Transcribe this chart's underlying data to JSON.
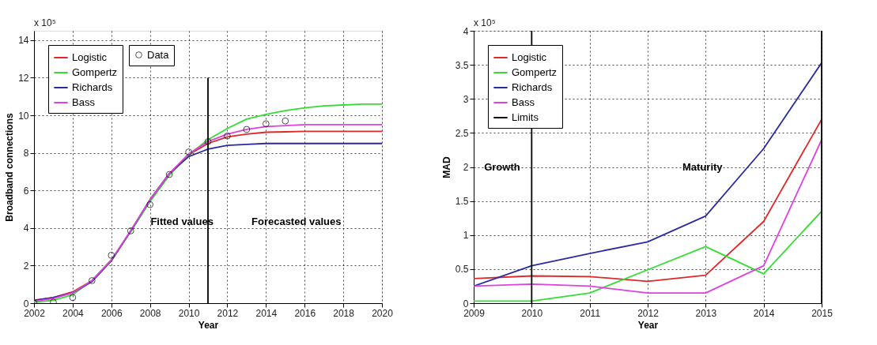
{
  "chart_data": [
    {
      "type": "line",
      "xlabel": "Year",
      "ylabel": "Broadband connections",
      "x": [
        2002,
        2003,
        2004,
        2005,
        2006,
        2007,
        2008,
        2009,
        2010,
        2011,
        2012,
        2013,
        2014,
        2015,
        2016,
        2017,
        2018,
        2019,
        2020
      ],
      "xlim": [
        2002,
        2020
      ],
      "xticks": [
        2002,
        2004,
        2006,
        2008,
        2010,
        2012,
        2014,
        2016,
        2018,
        2020
      ],
      "ylim": [
        0,
        14.5
      ],
      "yticks": [
        0,
        2,
        4,
        6,
        8,
        10,
        12,
        14
      ],
      "grid": true,
      "legend": "top left",
      "marker": "none",
      "series": [
        {
          "name": "Logistic",
          "color": "#e02828",
          "values": [
            0.15,
            0.3,
            0.6,
            1.2,
            2.3,
            3.8,
            5.5,
            6.9,
            7.9,
            8.5,
            8.85,
            9.0,
            9.1,
            9.12,
            9.15,
            9.15,
            9.15,
            9.15,
            9.15
          ]
        },
        {
          "name": "Gompertz",
          "color": "#33dd33",
          "values": [
            0.05,
            0.15,
            0.45,
            1.2,
            2.3,
            3.8,
            5.4,
            6.8,
            7.9,
            8.7,
            9.3,
            9.8,
            10.05,
            10.25,
            10.4,
            10.5,
            10.55,
            10.6,
            10.6
          ]
        },
        {
          "name": "Richards",
          "color": "#2b2ba0",
          "values": [
            0.15,
            0.3,
            0.55,
            1.15,
            2.25,
            3.85,
            5.5,
            6.9,
            7.8,
            8.2,
            8.4,
            8.45,
            8.5,
            8.5,
            8.5,
            8.5,
            8.5,
            8.5,
            8.5
          ]
        },
        {
          "name": "Bass",
          "color": "#e040e0",
          "values": [
            0.1,
            0.25,
            0.55,
            1.2,
            2.3,
            3.85,
            5.5,
            6.9,
            7.95,
            8.6,
            9.0,
            9.25,
            9.4,
            9.45,
            9.5,
            9.5,
            9.5,
            9.5,
            9.5
          ]
        },
        {
          "name": "Data",
          "type": "scatter",
          "marker": "circle",
          "color": "#000000",
          "x": [
            2002,
            2003,
            2004,
            2005,
            2006,
            2007,
            2008,
            2009,
            2010,
            2011,
            2012,
            2013,
            2014,
            2015
          ],
          "values": [
            0,
            0.05,
            0.3,
            1.2,
            2.55,
            3.85,
            5.25,
            6.85,
            8.05,
            8.6,
            8.9,
            9.25,
            9.55,
            9.7
          ]
        },
        {
          "type": "line",
          "color": "#000000",
          "x": [
            2011,
            2011
          ],
          "values": [
            0,
            12
          ]
        }
      ],
      "annotations": [
        "x 10⁵",
        "Fitted values",
        "Forecasted values"
      ]
    },
    {
      "type": "line",
      "xlabel": "Year",
      "ylabel": "MAD",
      "x": [
        2009,
        2010,
        2011,
        2012,
        2013,
        2014,
        2015
      ],
      "xlim": [
        2009,
        2015
      ],
      "xticks": [
        2009,
        2010,
        2011,
        2012,
        2013,
        2014,
        2015
      ],
      "ylim": [
        0,
        4
      ],
      "yticks": [
        0,
        0.5,
        1,
        1.5,
        2,
        2.5,
        3,
        3.5,
        4
      ],
      "grid": true,
      "legend": "top left",
      "marker": "none",
      "series": [
        {
          "name": "Logistic",
          "color": "#e02828",
          "values": [
            0.36,
            0.4,
            0.39,
            0.32,
            0.41,
            1.2,
            2.7
          ]
        },
        {
          "name": "Gompertz",
          "color": "#33dd33",
          "values": [
            0.03,
            0.03,
            0.15,
            0.49,
            0.83,
            0.43,
            1.35
          ]
        },
        {
          "name": "Richards",
          "color": "#2b2ba0",
          "values": [
            0.25,
            0.55,
            0.73,
            0.9,
            1.28,
            2.27,
            3.53
          ]
        },
        {
          "name": "Bass",
          "color": "#e040e0",
          "values": [
            0.25,
            0.28,
            0.25,
            0.15,
            0.15,
            0.55,
            2.4
          ]
        }
      ],
      "ref_lines": [
        {
          "axis": "x",
          "value": 2010,
          "label": "Limits",
          "color": "#000000"
        },
        {
          "axis": "x",
          "value": 2015,
          "color": "#000000"
        }
      ],
      "annotations": [
        "x 10⁵",
        "Growth",
        "Maturity"
      ]
    }
  ]
}
